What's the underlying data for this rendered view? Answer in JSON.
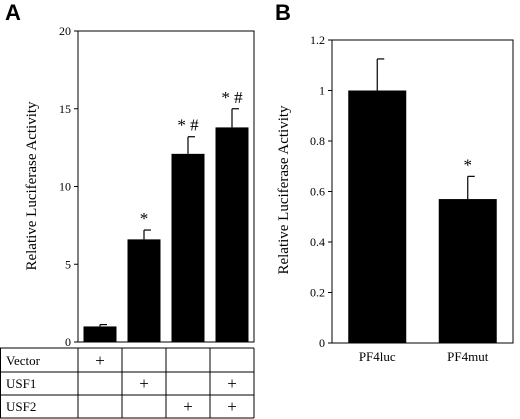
{
  "panels": {
    "A": {
      "label": "A",
      "ylabel": "Relative Luciferase Activity",
      "conditions": [
        {
          "name": "Vector",
          "marks": [
            "+",
            "",
            "",
            ""
          ]
        },
        {
          "name": "USF1",
          "marks": [
            "",
            "+",
            "",
            "+"
          ]
        },
        {
          "name": "USF2",
          "marks": [
            "",
            "",
            "+",
            "+"
          ]
        }
      ]
    },
    "B": {
      "label": "B",
      "ylabel": "Relative Luciferase Activity"
    }
  },
  "chart_data": [
    {
      "type": "bar",
      "title": "",
      "xlabel": "",
      "ylabel": "Relative Luciferase Activity",
      "ylim": [
        0,
        20
      ],
      "yticks": [
        "0",
        "5",
        "10",
        "15",
        "20"
      ],
      "categories": [
        "",
        "",
        "",
        ""
      ],
      "values": [
        1.0,
        6.6,
        12.1,
        13.8
      ],
      "errors": [
        0.12,
        0.6,
        1.1,
        1.2
      ],
      "annotations": [
        "",
        "*",
        "* #",
        "* #"
      ],
      "grid": false,
      "bar_color": "#000000"
    },
    {
      "type": "bar",
      "title": "",
      "xlabel": "",
      "ylabel": "Relative Luciferase Activity",
      "ylim": [
        0,
        1.2
      ],
      "yticks": [
        "0",
        "0.2",
        "0.4",
        "0.6",
        "0.8",
        "1",
        "1.2"
      ],
      "categories": [
        "PF4luc",
        "PF4mut"
      ],
      "values": [
        1.0,
        0.57
      ],
      "errors": [
        0.125,
        0.09
      ],
      "annotations": [
        "",
        "*"
      ],
      "grid": false,
      "bar_color": "#000000"
    }
  ]
}
